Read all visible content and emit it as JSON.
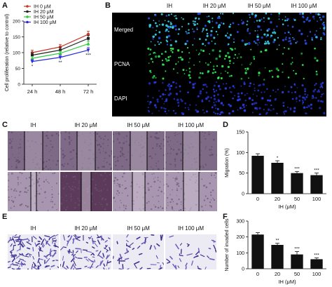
{
  "panels": {
    "A": "A",
    "B": "B",
    "C": "C",
    "D": "D",
    "E": "E",
    "F": "F"
  },
  "conditions": [
    "IH",
    "IH 20 μM",
    "IH 50 μM",
    "IH 100 μM"
  ],
  "panel_b": {
    "rows": [
      "Merged",
      "PCNA",
      "DAPI"
    ]
  },
  "chart_data": [
    {
      "panel": "A",
      "type": "line",
      "x": [
        "24 h",
        "48 h",
        "72 h"
      ],
      "ylabel": "Cell proliferation (relative to control)",
      "ylim": [
        0,
        200
      ],
      "yticks": [
        0,
        50,
        100,
        150,
        200
      ],
      "legend_position": "top-left",
      "series": [
        {
          "name": "IH 0 μM",
          "values": [
            100,
            118,
            158
          ],
          "errors": [
            8,
            8,
            10
          ],
          "color": "#c0392b",
          "marker": "circle"
        },
        {
          "name": "IH 20 μM",
          "values": [
            92,
            108,
            145
          ],
          "errors": [
            7,
            8,
            9
          ],
          "color": "#222222",
          "marker": "square"
        },
        {
          "name": "IH 50 μM",
          "values": [
            82,
            98,
            128
          ],
          "errors": [
            6,
            7,
            8
          ],
          "color": "#2ecc40",
          "marker": "triangle"
        },
        {
          "name": "IH 100 μM",
          "values": [
            72,
            85,
            108
          ],
          "errors": [
            6,
            7,
            8
          ],
          "color": "#2b2bd6",
          "marker": "triangle-down"
        }
      ],
      "annotations": [
        "*",
        "**",
        "***"
      ]
    },
    {
      "panel": "D",
      "type": "bar",
      "categories": [
        "0",
        "20",
        "50",
        "100"
      ],
      "values": [
        92,
        75,
        50,
        45
      ],
      "errors": [
        5,
        5,
        4,
        5
      ],
      "significance": [
        "",
        "*",
        "***",
        "***"
      ],
      "xlabel": "IH (μM)",
      "ylabel": "Migration (%)",
      "ylim": [
        0,
        150
      ],
      "yticks": [
        0,
        50,
        100,
        150
      ]
    },
    {
      "panel": "F",
      "type": "bar",
      "categories": [
        "0",
        "20",
        "50",
        "100"
      ],
      "values": [
        215,
        150,
        90,
        60
      ],
      "errors": [
        12,
        10,
        18,
        8
      ],
      "significance": [
        "",
        "**",
        "***",
        "***"
      ],
      "xlabel": "IH (μM)",
      "ylabel": "Number of invaded cells",
      "ylim": [
        0,
        300
      ],
      "yticks": [
        0,
        100,
        200,
        300
      ]
    }
  ]
}
